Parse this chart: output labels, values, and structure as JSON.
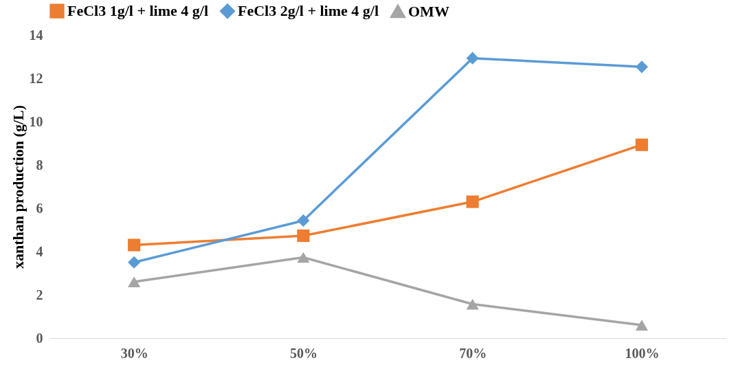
{
  "chart_data": {
    "type": "line",
    "ylabel": "xanthan production (g/L)",
    "categories": [
      "30%",
      "50%",
      "70%",
      "100%"
    ],
    "series": [
      {
        "name": "FeCl3 1g/l + lime 4 g/l",
        "color": "#ed7d31",
        "marker": "square",
        "values": [
          4.3,
          4.73,
          6.3,
          8.93
        ]
      },
      {
        "name": "FeCl3 2g/l + lime 4 g/l",
        "color": "#5b9bd5",
        "marker": "diamond",
        "values": [
          3.5,
          5.43,
          12.93,
          12.53
        ]
      },
      {
        "name": "OMW",
        "color": "#a5a5a5",
        "marker": "triangle",
        "values": [
          2.6,
          3.73,
          1.57,
          0.6
        ]
      }
    ],
    "ylim": [
      0,
      14
    ],
    "yticks": [
      0,
      2,
      4,
      6,
      8,
      10,
      12,
      14
    ],
    "grid": false,
    "legend": "top",
    "line_style": "solid"
  }
}
